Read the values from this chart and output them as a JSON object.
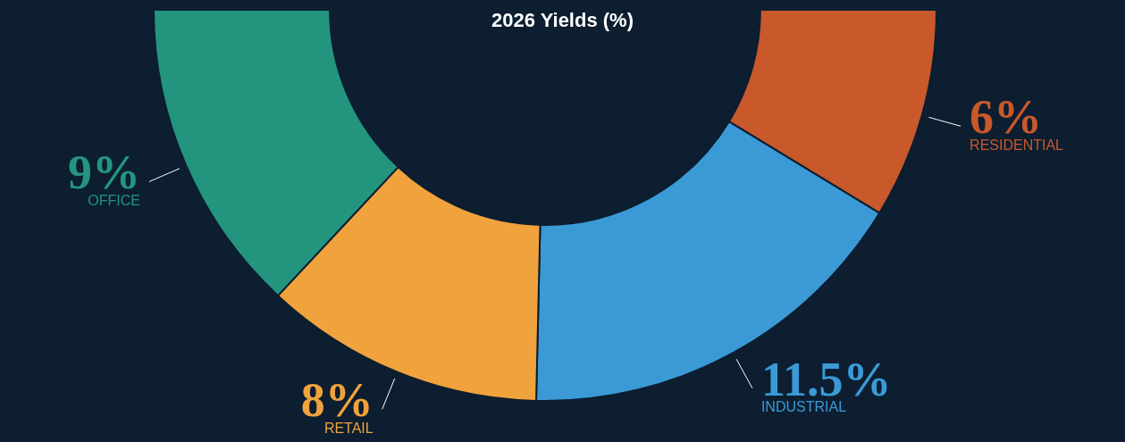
{
  "chart_data": {
    "type": "donut",
    "title": "2026 Yields (%)",
    "categories": [
      "OFFICE",
      "RETAIL",
      "INDUSTRIAL",
      "RESIDENTIAL"
    ],
    "values": [
      9,
      8,
      11.5,
      6
    ],
    "value_labels": [
      "9%",
      "8%",
      "11.5%",
      "6%"
    ],
    "colors": [
      "#23957f",
      "#f0a23c",
      "#3b9ad6",
      "#c9582b"
    ],
    "legend": false
  }
}
